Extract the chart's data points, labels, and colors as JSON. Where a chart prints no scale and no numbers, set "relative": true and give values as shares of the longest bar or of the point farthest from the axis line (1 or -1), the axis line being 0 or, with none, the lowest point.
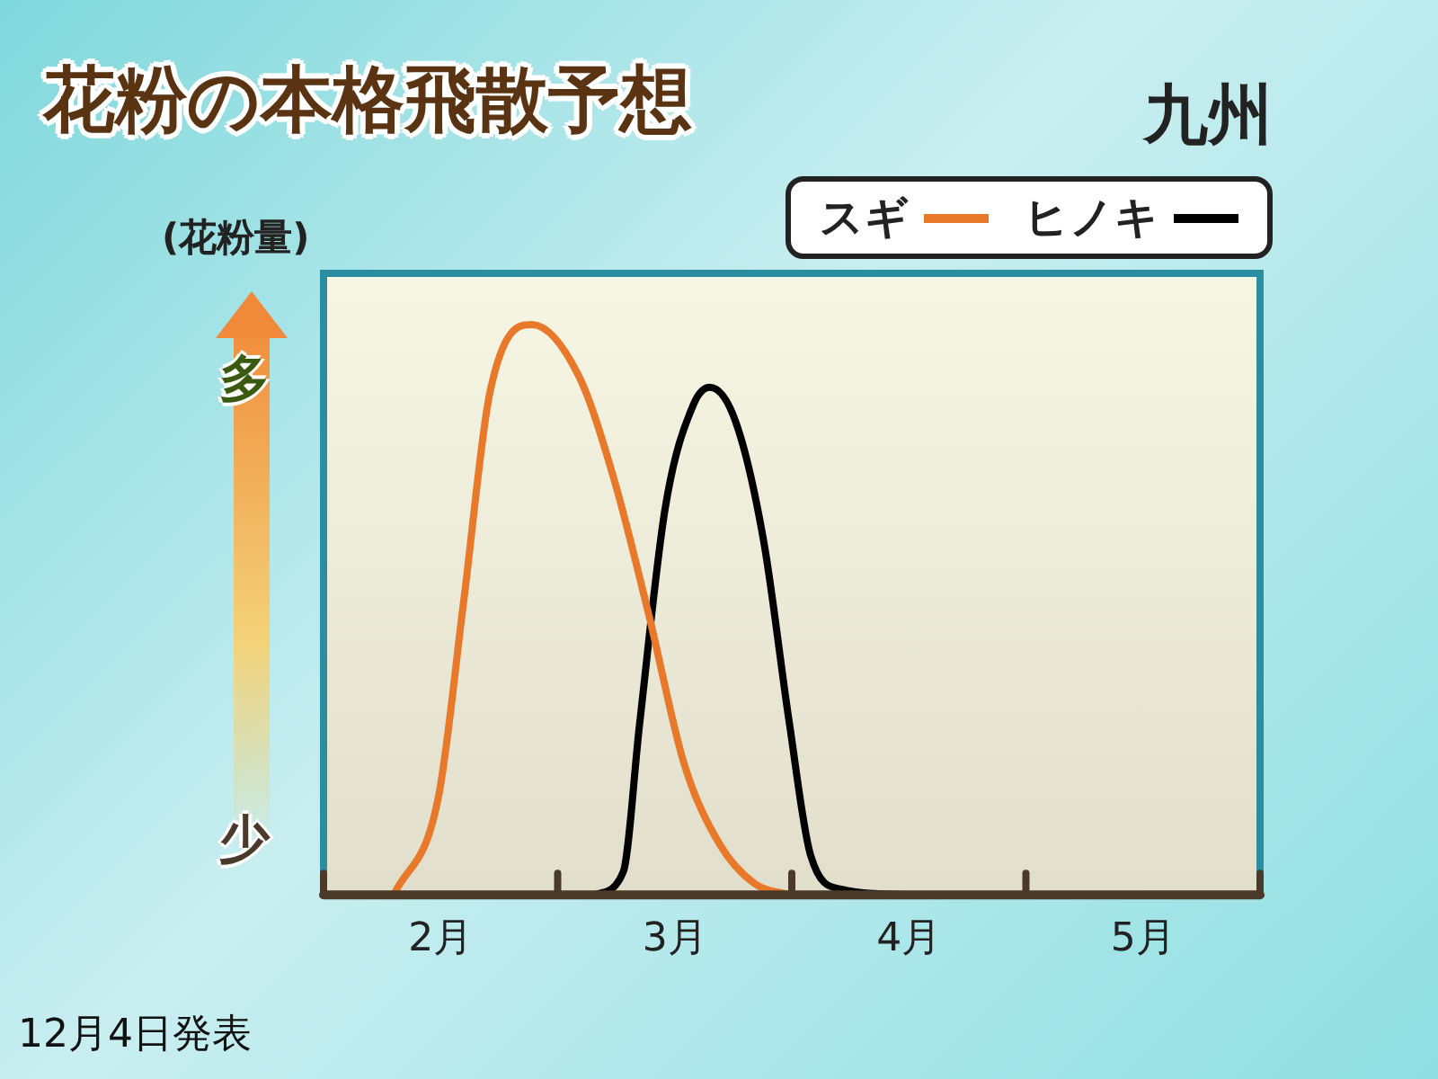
{
  "chart_data": {
    "type": "line",
    "title": "花粉の本格飛散予想",
    "subtitle": "九州",
    "ylabel": "(花粉量)",
    "annotations": [
      "多",
      "少",
      "12月4日発表"
    ],
    "relative": true,
    "legend": "top right",
    "marker": "none",
    "grid": false,
    "xlim": [
      2,
      6
    ],
    "xticks": [
      {
        "value": 2,
        "label": null
      },
      {
        "value": 2.5,
        "label": "2月"
      },
      {
        "value": 3,
        "label": null
      },
      {
        "value": 3.5,
        "label": "3月"
      },
      {
        "value": 4,
        "label": null
      },
      {
        "value": 4.5,
        "label": "4月"
      },
      {
        "value": 5,
        "label": null
      },
      {
        "value": 5.5,
        "label": "5月"
      },
      {
        "value": 6,
        "label": null
      }
    ],
    "series": [
      {
        "name": "スギ",
        "color": "#e8782a",
        "x": [
          2.3,
          2.49,
          2.6,
          2.71,
          2.89,
          3.09,
          3.24,
          3.39,
          3.54,
          3.69,
          3.84,
          3.99
        ],
        "values": [
          0,
          0.17,
          0.52,
          0.88,
          1,
          0.91,
          0.73,
          0.49,
          0.23,
          0.09,
          0.02,
          0
        ]
      },
      {
        "name": "ヒノキ",
        "color": "#000000",
        "x": [
          3.16,
          3.28,
          3.35,
          3.46,
          3.58,
          3.65,
          3.76,
          3.88,
          3.99,
          4.08,
          4.21,
          4.51
        ],
        "values": [
          0,
          0.04,
          0.3,
          0.68,
          0.86,
          0.89,
          0.83,
          0.62,
          0.3,
          0.07,
          0.01,
          0
        ]
      }
    ]
  }
}
